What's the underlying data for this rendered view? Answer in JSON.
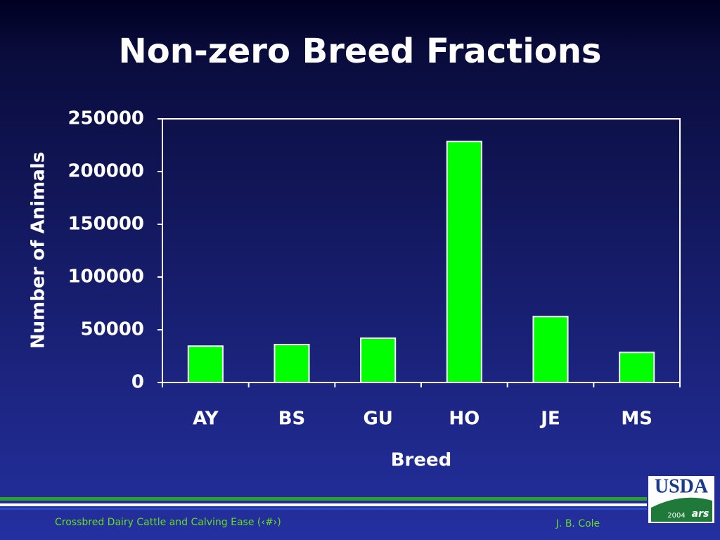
{
  "chart_data": {
    "type": "bar",
    "title": "Non-zero Breed Fractions",
    "x_label": "Breed",
    "y_label": "Number of Animals",
    "categories": [
      "AY",
      "BS",
      "GU",
      "HO",
      "JE",
      "MS"
    ],
    "values": [
      34500,
      36000,
      42000,
      228500,
      62500,
      28500
    ],
    "color": "#00ff00",
    "ylim": [
      0,
      250000
    ],
    "yticks": [
      0,
      50000,
      100000,
      150000,
      200000,
      250000
    ],
    "grid": false
  },
  "footer": {
    "title": "Crossbred Dairy Cattle and Calving Ease (‹#›)",
    "author": "J. B. Cole"
  },
  "logo": {
    "name": "USDA",
    "year": "2004",
    "agency": "ars"
  }
}
